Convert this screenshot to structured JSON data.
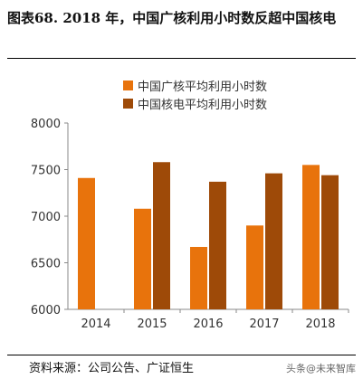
{
  "header": {
    "title": "图表68. 2018 年，中国广核利用小时数反超中国核电"
  },
  "footer": {
    "source": "资料来源：公司公告、广证恒生",
    "watermark": "头条@未来智库"
  },
  "colors": {
    "series1": "#E8730C",
    "series2": "#9E4A08",
    "axis": "#888888"
  },
  "chart_data": {
    "type": "bar",
    "categories": [
      "2014",
      "2015",
      "2016",
      "2017",
      "2018"
    ],
    "series": [
      {
        "name": "中国广核平均利用小时数",
        "values": [
          7410,
          7080,
          6670,
          6900,
          7550
        ]
      },
      {
        "name": "中国核电平均利用小时数",
        "values": [
          null,
          7580,
          7370,
          7460,
          7440
        ]
      }
    ],
    "ylim": [
      6000,
      8000
    ],
    "yticks": [
      "6000",
      "6500",
      "7000",
      "7500",
      "8000"
    ],
    "grid": false,
    "legend": "top"
  }
}
